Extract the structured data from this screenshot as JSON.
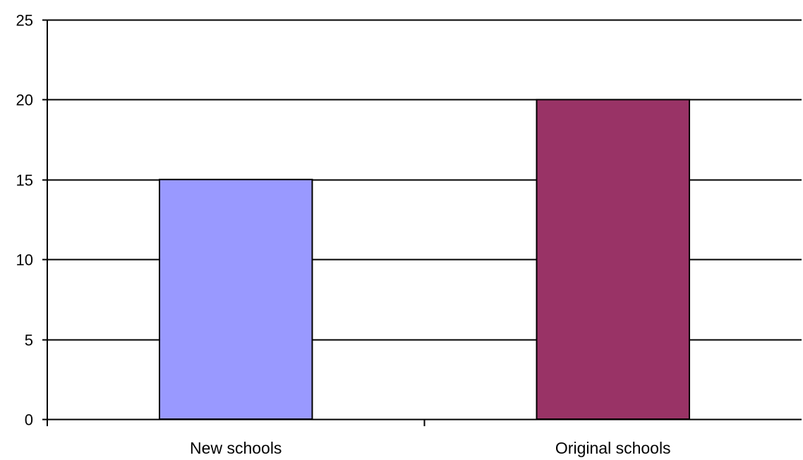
{
  "chart_data": {
    "type": "bar",
    "categories": [
      "New schools",
      "Original schools"
    ],
    "values": [
      15,
      20
    ],
    "colors": [
      "#9999ff",
      "#993366"
    ],
    "title": "",
    "xlabel": "",
    "ylabel": "",
    "ylim": [
      0,
      25
    ],
    "yticks": [
      "0",
      "5",
      "10",
      "15",
      "20",
      "25"
    ],
    "grid": true,
    "legend": "none"
  }
}
